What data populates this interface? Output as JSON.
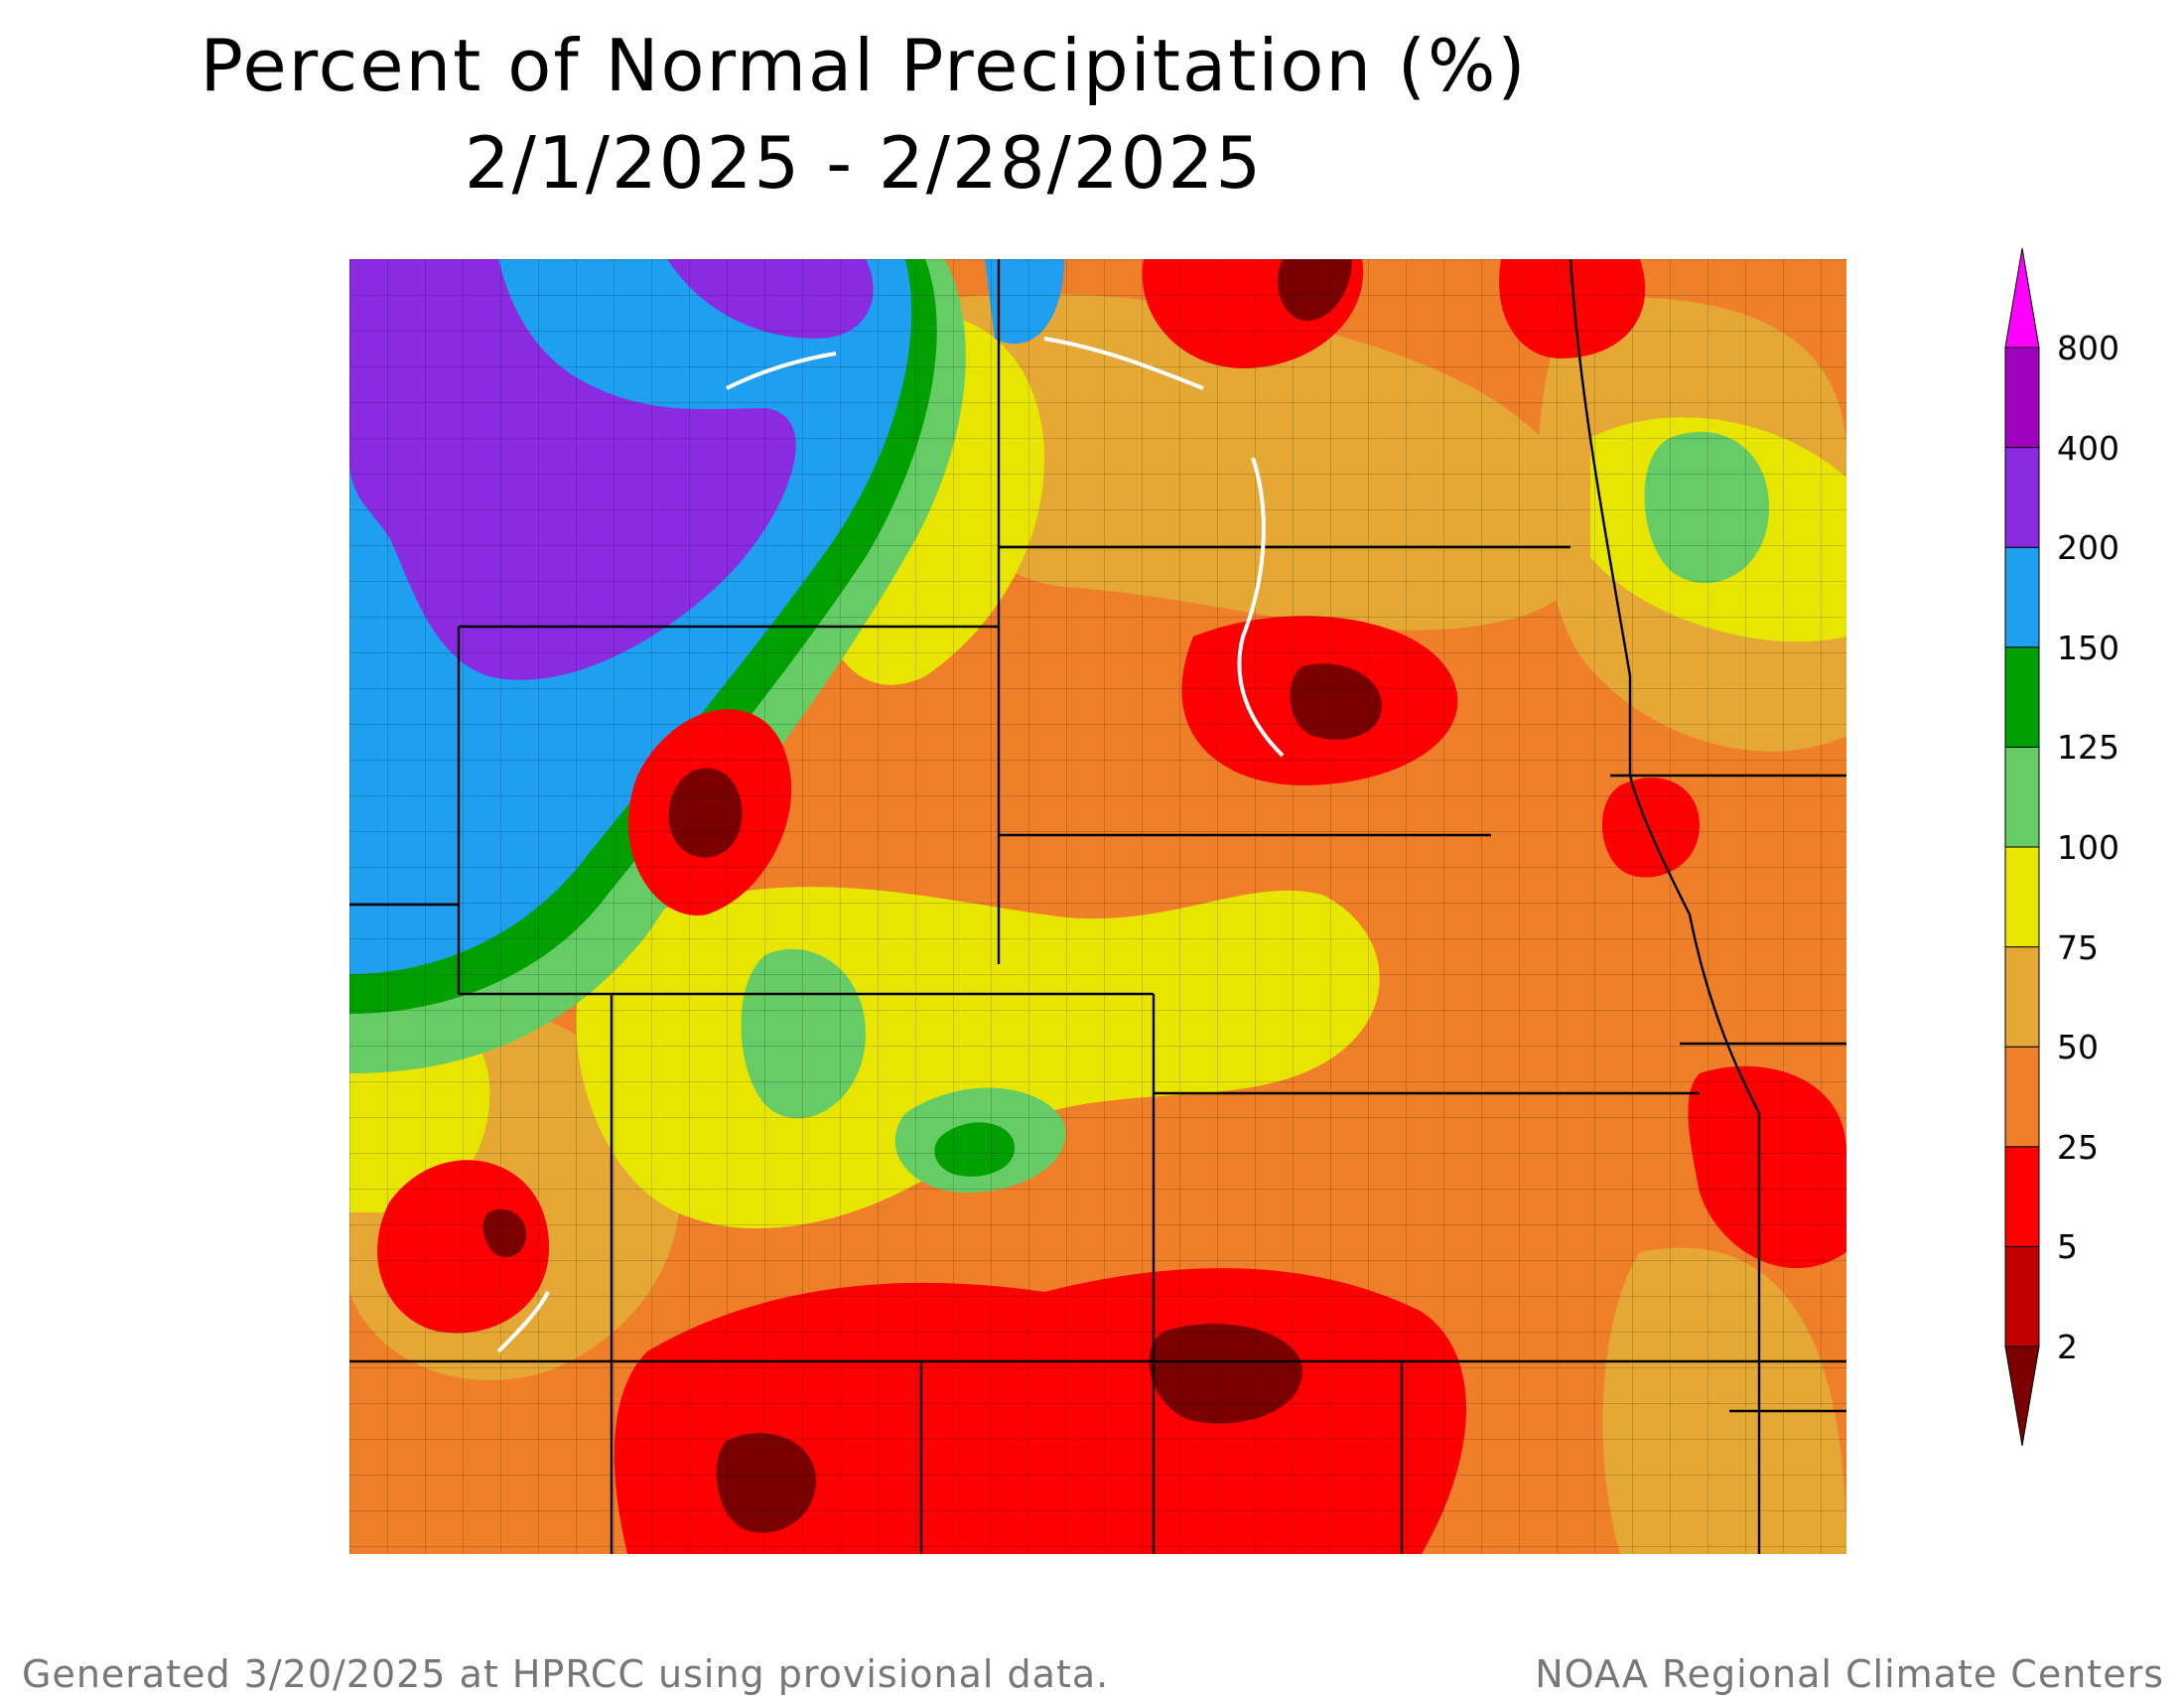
{
  "title": {
    "line1": "Percent of Normal Precipitation (%)",
    "line2": "2/1/2025 - 2/28/2025"
  },
  "legend": {
    "levels": [
      "2",
      "5",
      "25",
      "50",
      "75",
      "100",
      "125",
      "150",
      "200",
      "400",
      "800"
    ],
    "bands": [
      {
        "color": "#7a0000"
      },
      {
        "color": "#c00000"
      },
      {
        "color": "#ff0000"
      },
      {
        "color": "#f07f2a"
      },
      {
        "color": "#e6a835"
      },
      {
        "color": "#e8e600"
      },
      {
        "color": "#66cc66"
      },
      {
        "color": "#00a000"
      },
      {
        "color": "#1e9ff0"
      },
      {
        "color": "#8a2be2"
      },
      {
        "color": "#a000c0"
      },
      {
        "color": "#ff00ff"
      }
    ]
  },
  "map": {
    "background_color": "#f07f2a",
    "regions": [
      {
        "name": "purple-northwest",
        "color": "#8a2be2"
      },
      {
        "name": "blue-west",
        "color": "#1e9ff0"
      },
      {
        "name": "green-west",
        "color": "#00a000"
      },
      {
        "name": "yellow-central",
        "color": "#e8e600"
      },
      {
        "name": "red-dry",
        "color": "#ff0000"
      },
      {
        "name": "darkred-dry",
        "color": "#7a0000"
      }
    ]
  },
  "footer": {
    "left": "Generated 3/20/2025 at HPRCC using provisional data.",
    "right": "NOAA Regional Climate Centers"
  }
}
